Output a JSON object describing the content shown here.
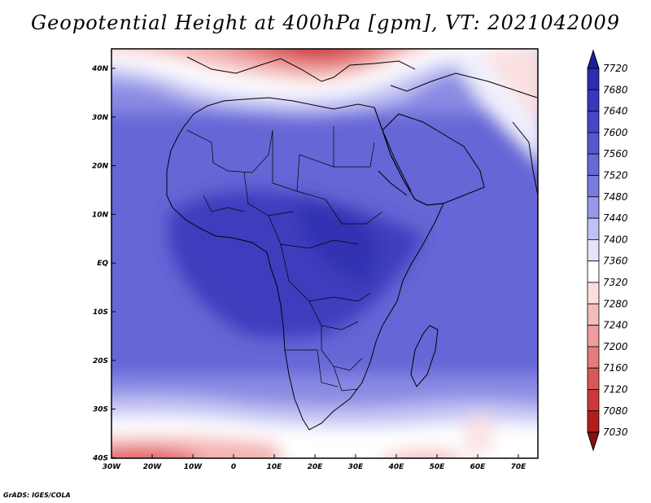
{
  "title": "Geopotential Height at 400hPa [gpm], VT: 2021042009",
  "credit": "GrADS: IGES/COLA",
  "lon_labels": [
    "30W",
    "20W",
    "10W",
    "0",
    "10E",
    "20E",
    "30E",
    "40E",
    "50E",
    "60E",
    "70E"
  ],
  "lat_labels": [
    "40N",
    "30N",
    "20N",
    "10N",
    "EQ",
    "10S",
    "20S",
    "30S",
    "40S"
  ],
  "colorbar": {
    "levels": [
      "7720",
      "7680",
      "7640",
      "7600",
      "7560",
      "7520",
      "7480",
      "7440",
      "7400",
      "7360",
      "7320",
      "7280",
      "7240",
      "7200",
      "7160",
      "7120",
      "7080",
      "7030"
    ],
    "colors": [
      "#1e1e9c",
      "#2c2cb0",
      "#3838bc",
      "#4646c6",
      "#5656d0",
      "#6868d8",
      "#7a7ae0",
      "#9898ea",
      "#c0c0f4",
      "#e4e4fb",
      "#ffffff",
      "#fbdede",
      "#f4bcbc",
      "#ec9c9c",
      "#e47c7c",
      "#d85858",
      "#cc3838",
      "#b01e1e",
      "#8c1010"
    ]
  },
  "map": {
    "domain": {
      "lon_min": -30,
      "lon_max": 75,
      "lat_min": -40,
      "lat_max": 45
    },
    "field": "Geopotential Height 400hPa",
    "units": "gpm",
    "valid_time": "2021042009"
  }
}
